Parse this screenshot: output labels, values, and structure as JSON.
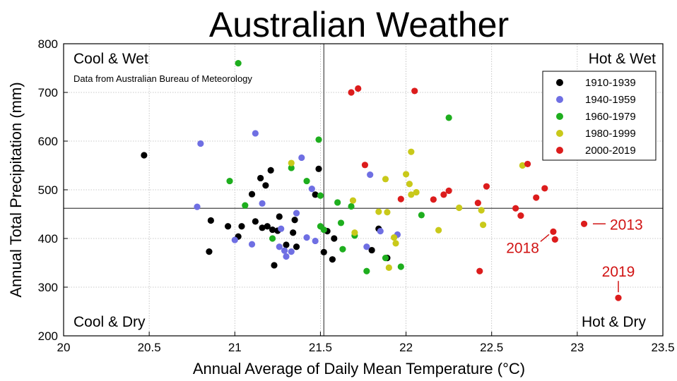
{
  "chart_data": {
    "type": "scatter",
    "title": "Australian Weather",
    "subtitle": "Data from Australian Bureau of Meteorology",
    "xlabel": "Annual Average of Daily Mean Temperature (°C)",
    "ylabel": "Annual Total Precipitation (mm)",
    "xlim": [
      20,
      23.5
    ],
    "ylim": [
      200,
      800
    ],
    "xticks": [
      "20",
      "20.5",
      "21",
      "21.5",
      "22",
      "22.5",
      "23",
      "23.5"
    ],
    "yticks": [
      "200",
      "300",
      "400",
      "500",
      "600",
      "700",
      "800"
    ],
    "grid": true,
    "legend_position": "top-right",
    "reference_lines": {
      "x": 21.52,
      "y": 462
    },
    "quadrants": {
      "top_left": "Cool & Wet",
      "top_right": "Hot & Wet",
      "bottom_left": "Cool & Dry",
      "bottom_right": "Hot & Dry"
    },
    "annotations": [
      {
        "text": "2013",
        "x": 23.05,
        "y": 430
      },
      {
        "text": "2018",
        "x": 22.86,
        "y": 414
      },
      {
        "text": "2019",
        "x": 23.24,
        "y": 278
      }
    ],
    "series": [
      {
        "name": "1910-1939",
        "color": "#000000",
        "points": [
          [
            20.47,
            571
          ],
          [
            20.85,
            373
          ],
          [
            20.86,
            437
          ],
          [
            20.96,
            425
          ],
          [
            21.02,
            404
          ],
          [
            21.04,
            425
          ],
          [
            21.1,
            491
          ],
          [
            21.12,
            435
          ],
          [
            21.15,
            524
          ],
          [
            21.16,
            422
          ],
          [
            21.18,
            509
          ],
          [
            21.19,
            425
          ],
          [
            21.21,
            540
          ],
          [
            21.22,
            418
          ],
          [
            21.23,
            345
          ],
          [
            21.25,
            416
          ],
          [
            21.26,
            445
          ],
          [
            21.3,
            387
          ],
          [
            21.34,
            412
          ],
          [
            21.35,
            438
          ],
          [
            21.36,
            383
          ],
          [
            21.47,
            490
          ],
          [
            21.49,
            543
          ],
          [
            21.52,
            372
          ],
          [
            21.54,
            415
          ],
          [
            21.57,
            357
          ],
          [
            21.58,
            400
          ],
          [
            21.8,
            376
          ],
          [
            21.84,
            420
          ],
          [
            21.89,
            360
          ]
        ]
      },
      {
        "name": "1940-1959",
        "color": "#6f6fe3",
        "points": [
          [
            20.78,
            465
          ],
          [
            20.8,
            595
          ],
          [
            21.0,
            397
          ],
          [
            21.1,
            388
          ],
          [
            21.12,
            616
          ],
          [
            21.16,
            472
          ],
          [
            21.26,
            383
          ],
          [
            21.27,
            420
          ],
          [
            21.29,
            375
          ],
          [
            21.3,
            363
          ],
          [
            21.33,
            373
          ],
          [
            21.36,
            452
          ],
          [
            21.39,
            566
          ],
          [
            21.42,
            402
          ],
          [
            21.45,
            502
          ],
          [
            21.47,
            395
          ],
          [
            21.77,
            383
          ],
          [
            21.79,
            531
          ],
          [
            21.85,
            415
          ],
          [
            21.95,
            408
          ]
        ]
      },
      {
        "name": "1960-1979",
        "color": "#1eae1e",
        "points": [
          [
            20.97,
            518
          ],
          [
            21.02,
            760
          ],
          [
            21.06,
            468
          ],
          [
            21.22,
            400
          ],
          [
            21.33,
            545
          ],
          [
            21.42,
            518
          ],
          [
            21.49,
            603
          ],
          [
            21.5,
            488
          ],
          [
            21.5,
            425
          ],
          [
            21.52,
            418
          ],
          [
            21.6,
            474
          ],
          [
            21.62,
            432
          ],
          [
            21.63,
            378
          ],
          [
            21.68,
            466
          ],
          [
            21.7,
            406
          ],
          [
            21.77,
            333
          ],
          [
            21.88,
            360
          ],
          [
            21.97,
            342
          ],
          [
            22.09,
            448
          ],
          [
            22.25,
            648
          ]
        ]
      },
      {
        "name": "1980-1999",
        "color": "#c9c91a",
        "points": [
          [
            21.33,
            555
          ],
          [
            21.69,
            478
          ],
          [
            21.7,
            412
          ],
          [
            21.84,
            455
          ],
          [
            21.88,
            522
          ],
          [
            21.89,
            454
          ],
          [
            21.9,
            340
          ],
          [
            21.93,
            402
          ],
          [
            21.94,
            390
          ],
          [
            22.0,
            532
          ],
          [
            22.02,
            512
          ],
          [
            22.03,
            490
          ],
          [
            22.03,
            578
          ],
          [
            22.06,
            495
          ],
          [
            22.19,
            417
          ],
          [
            22.31,
            463
          ],
          [
            22.44,
            458
          ],
          [
            22.45,
            428
          ],
          [
            22.68,
            550
          ]
        ]
      },
      {
        "name": "2000-2019",
        "color": "#dc1c1c",
        "points": [
          [
            21.68,
            700
          ],
          [
            21.72,
            708
          ],
          [
            21.76,
            551
          ],
          [
            21.97,
            481
          ],
          [
            22.05,
            703
          ],
          [
            22.16,
            480
          ],
          [
            22.22,
            490
          ],
          [
            22.25,
            498
          ],
          [
            22.42,
            473
          ],
          [
            22.43,
            333
          ],
          [
            22.47,
            507
          ],
          [
            22.64,
            462
          ],
          [
            22.67,
            447
          ],
          [
            22.71,
            553
          ],
          [
            22.76,
            484
          ],
          [
            22.81,
            503
          ],
          [
            22.86,
            414
          ],
          [
            22.87,
            398
          ],
          [
            23.04,
            430
          ],
          [
            23.24,
            278
          ]
        ]
      }
    ]
  }
}
